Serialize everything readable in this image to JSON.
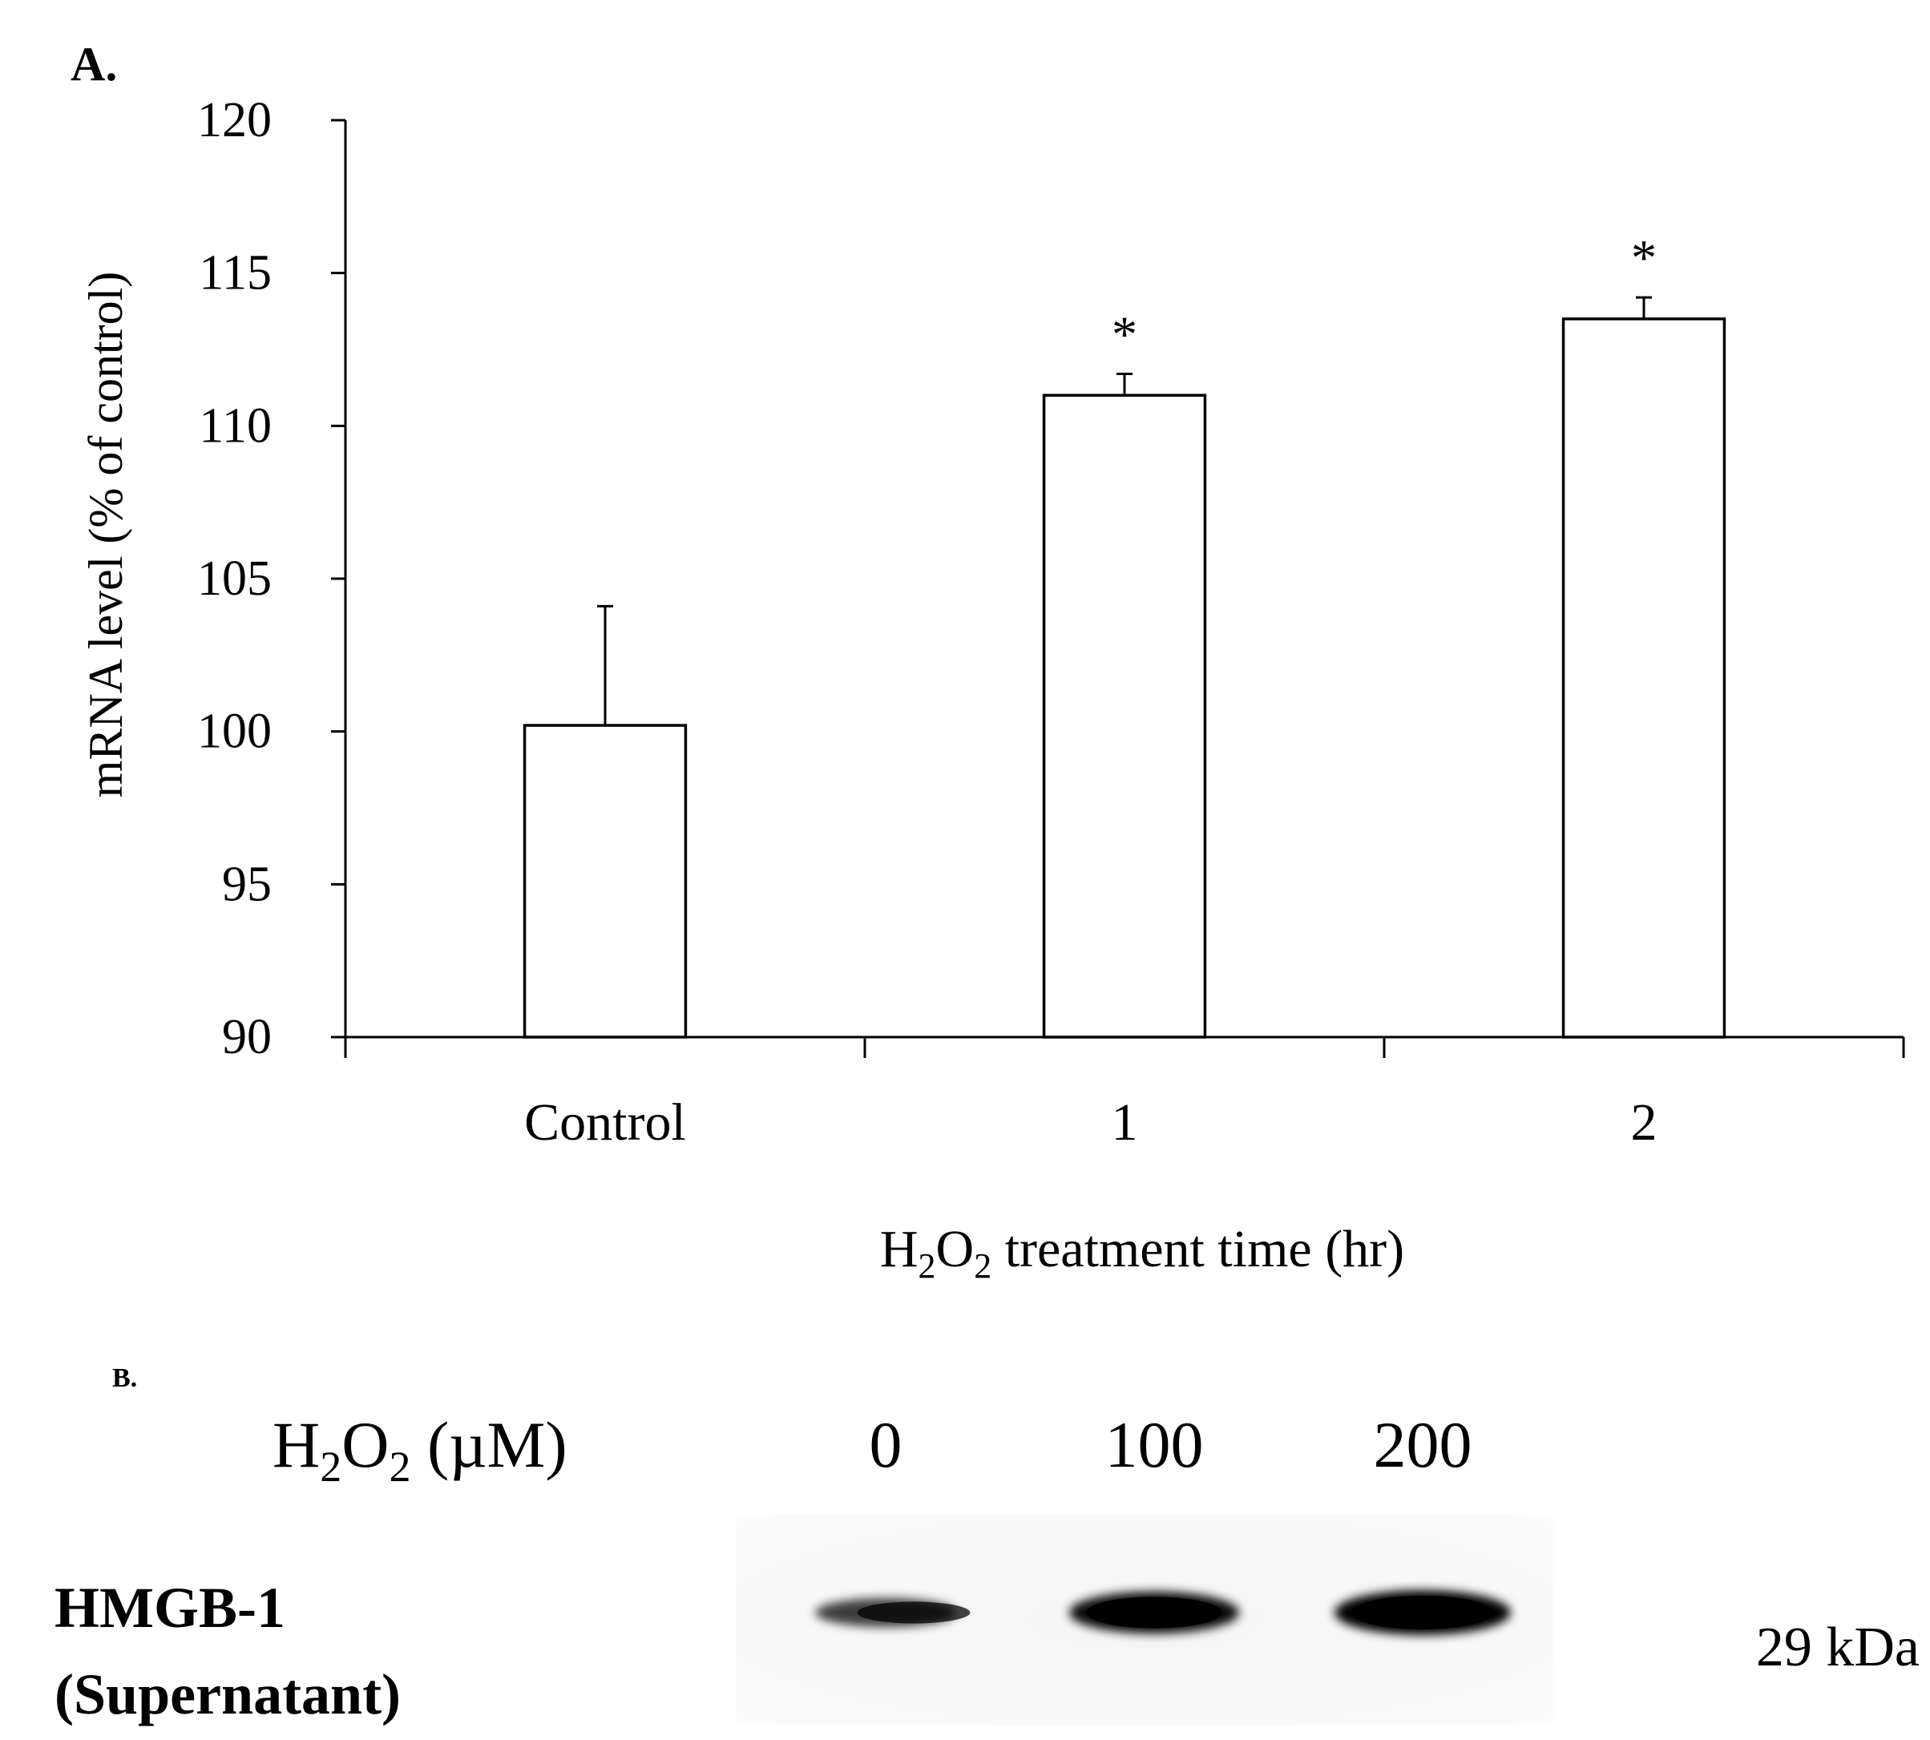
{
  "chart_data": [
    {
      "type": "bar",
      "panel_label": "A.",
      "categories": [
        "Control",
        "1",
        "2"
      ],
      "values": [
        100.2,
        111.0,
        113.5
      ],
      "errors": [
        3.9,
        0.7,
        0.7
      ],
      "significance": [
        "",
        "*",
        "*"
      ],
      "ylabel": "mRNA level (% of control)",
      "xlabel": {
        "prefix": "H",
        "sub1": "2",
        "mid": "O",
        "sub2": "2",
        "suffix": " treatment time (hr)"
      },
      "ylim": [
        90,
        120
      ],
      "yticks": [
        "90",
        "95",
        "100",
        "105",
        "110",
        "115",
        "120"
      ],
      "grid": false,
      "bar_fill": "#ffffff",
      "bar_stroke": "#000000"
    }
  ],
  "panel_b": {
    "label": "B.",
    "header": {
      "prefix": "H",
      "sub1": "2",
      "mid": "O",
      "sub2": "2",
      "unit": " (µM)"
    },
    "lanes": [
      "0",
      "100",
      "200"
    ],
    "band_intensity": [
      0.45,
      0.9,
      1.0
    ],
    "row_label_line1": "HMGB-1",
    "row_label_line2": "(Supernatant)",
    "marker": "29 kDa"
  }
}
